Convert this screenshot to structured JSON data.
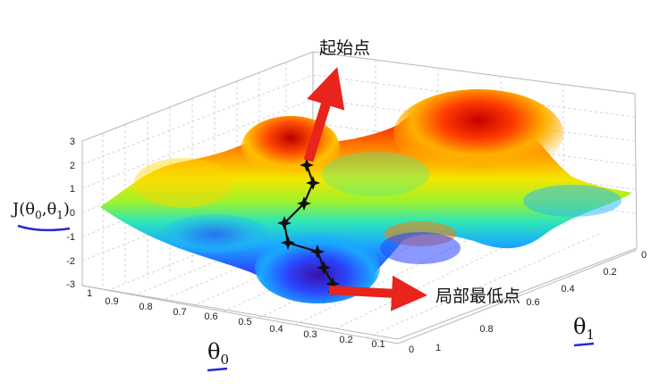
{
  "annotations": {
    "start_point": "起始点",
    "local_minimum": "局部最低点"
  },
  "axes": {
    "z_label_main": "J(θ",
    "z_sub0": "0",
    "z_comma": ",θ",
    "z_sub1": "1",
    "z_close": ")",
    "theta0_main": "θ",
    "theta0_sub": "0",
    "theta1_main": "θ",
    "theta1_sub": "1",
    "z_ticks": [
      "3",
      "2",
      "1",
      "0",
      "-1",
      "-2",
      "-3"
    ],
    "theta0_ticks": [
      "1",
      "0.9",
      "0.8",
      "0.7",
      "0.6",
      "0.5",
      "0.4",
      "0.3",
      "0.2",
      "0.1",
      "0"
    ],
    "theta1_ticks": [
      "0",
      "0.2",
      "0.4",
      "0.6",
      "0.8",
      "1"
    ]
  },
  "colors": {
    "arrow": "#e8241c",
    "underline": "#2a2ad0",
    "path": "#111111",
    "surface_high": "#d10000",
    "surface_low": "#3a10a8"
  }
}
